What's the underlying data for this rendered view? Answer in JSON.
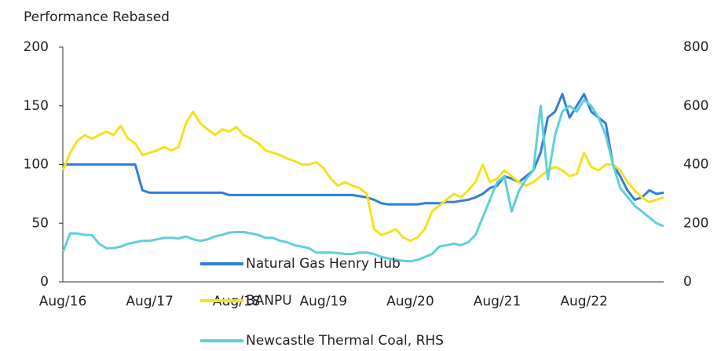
{
  "chart_data": {
    "type": "line",
    "title": "Performance Rebased",
    "x": [
      "Aug/16",
      "Sep/16",
      "Oct/16",
      "Nov/16",
      "Dec/16",
      "Jan/17",
      "Feb/17",
      "Mar/17",
      "Apr/17",
      "May/17",
      "Jun/17",
      "Jul/17",
      "Aug/17",
      "Sep/17",
      "Oct/17",
      "Nov/17",
      "Dec/17",
      "Jan/18",
      "Feb/18",
      "Mar/18",
      "Apr/18",
      "May/18",
      "Jun/18",
      "Jul/18",
      "Aug/18",
      "Sep/18",
      "Oct/18",
      "Nov/18",
      "Dec/18",
      "Jan/19",
      "Feb/19",
      "Mar/19",
      "Apr/19",
      "May/19",
      "Jun/19",
      "Jul/19",
      "Aug/19",
      "Sep/19",
      "Oct/19",
      "Nov/19",
      "Dec/19",
      "Jan/20",
      "Feb/20",
      "Mar/20",
      "Apr/20",
      "May/20",
      "Jun/20",
      "Jul/20",
      "Aug/20",
      "Sep/20",
      "Oct/20",
      "Nov/20",
      "Dec/20",
      "Jan/21",
      "Feb/21",
      "Mar/21",
      "Apr/21",
      "May/21",
      "Jun/21",
      "Jul/21",
      "Aug/21",
      "Sep/21",
      "Oct/21",
      "Nov/21",
      "Dec/21",
      "Jan/22",
      "Feb/22",
      "Mar/22",
      "Apr/22",
      "May/22",
      "Jun/22",
      "Jul/22",
      "Aug/22",
      "Sep/22",
      "Oct/22",
      "Nov/22",
      "Dec/22",
      "Jan/23",
      "Feb/23",
      "Mar/23",
      "Apr/23",
      "May/23",
      "Jun/23",
      "Jul/23"
    ],
    "xticks": [
      "Aug/16",
      "Aug/17",
      "Aug/18",
      "Aug/19",
      "Aug/20",
      "Aug/21",
      "Aug/22"
    ],
    "ylim": [
      0,
      200
    ],
    "yticks": [
      0,
      50,
      100,
      150,
      200
    ],
    "y2lim": [
      0,
      800
    ],
    "y2ticks": [
      0,
      200,
      400,
      600,
      800
    ],
    "series": [
      {
        "name": "Natural Gas Henry Hub",
        "color": "#2f7fd8",
        "values": [
          100,
          100,
          100,
          100,
          100,
          100,
          100,
          100,
          100,
          100,
          100,
          78,
          76,
          76,
          76,
          76,
          76,
          76,
          76,
          76,
          76,
          76,
          76,
          74,
          74,
          74,
          74,
          74,
          74,
          74,
          74,
          74,
          74,
          74,
          74,
          74,
          74,
          74,
          74,
          74,
          74,
          73,
          72,
          70,
          67,
          66,
          66,
          66,
          66,
          66,
          67,
          67,
          67,
          68,
          68,
          69,
          70,
          72,
          75,
          80,
          82,
          90,
          88,
          85,
          90,
          95,
          110,
          140,
          145,
          160,
          140,
          150,
          160,
          145,
          140,
          135,
          100,
          90,
          78,
          70,
          72,
          78,
          75,
          76
        ]
      },
      {
        "name": "BANPU",
        "color": "#f5e11c",
        "values": [
          95,
          110,
          120,
          125,
          122,
          125,
          128,
          125,
          133,
          122,
          118,
          108,
          110,
          112,
          115,
          112,
          115,
          135,
          145,
          135,
          130,
          125,
          130,
          128,
          132,
          125,
          122,
          118,
          112,
          110,
          108,
          105,
          103,
          100,
          100,
          102,
          97,
          88,
          82,
          85,
          82,
          80,
          75,
          45,
          40,
          42,
          45,
          38,
          35,
          38,
          45,
          60,
          65,
          70,
          75,
          72,
          78,
          85,
          100,
          85,
          88,
          95,
          90,
          85,
          82,
          85,
          90,
          95,
          98,
          95,
          90,
          92,
          110,
          98,
          95,
          100,
          100,
          95,
          85,
          78,
          72,
          68,
          70,
          72
        ]
      },
      {
        "name": "Newcastle Thermal Coal, RHS",
        "color": "#5fcfd8",
        "axis": "y2",
        "values": [
          100,
          165,
          165,
          160,
          160,
          130,
          115,
          115,
          120,
          130,
          135,
          140,
          140,
          145,
          150,
          150,
          148,
          155,
          145,
          140,
          145,
          155,
          160,
          168,
          170,
          170,
          165,
          160,
          150,
          150,
          140,
          135,
          125,
          120,
          115,
          100,
          100,
          100,
          98,
          95,
          95,
          100,
          100,
          95,
          85,
          80,
          75,
          72,
          70,
          75,
          85,
          95,
          120,
          125,
          130,
          125,
          135,
          160,
          220,
          280,
          340,
          360,
          240,
          310,
          350,
          380,
          600,
          350,
          500,
          580,
          600,
          580,
          620,
          600,
          560,
          500,
          400,
          320,
          290,
          260,
          240,
          220,
          200,
          190
        ]
      }
    ]
  }
}
